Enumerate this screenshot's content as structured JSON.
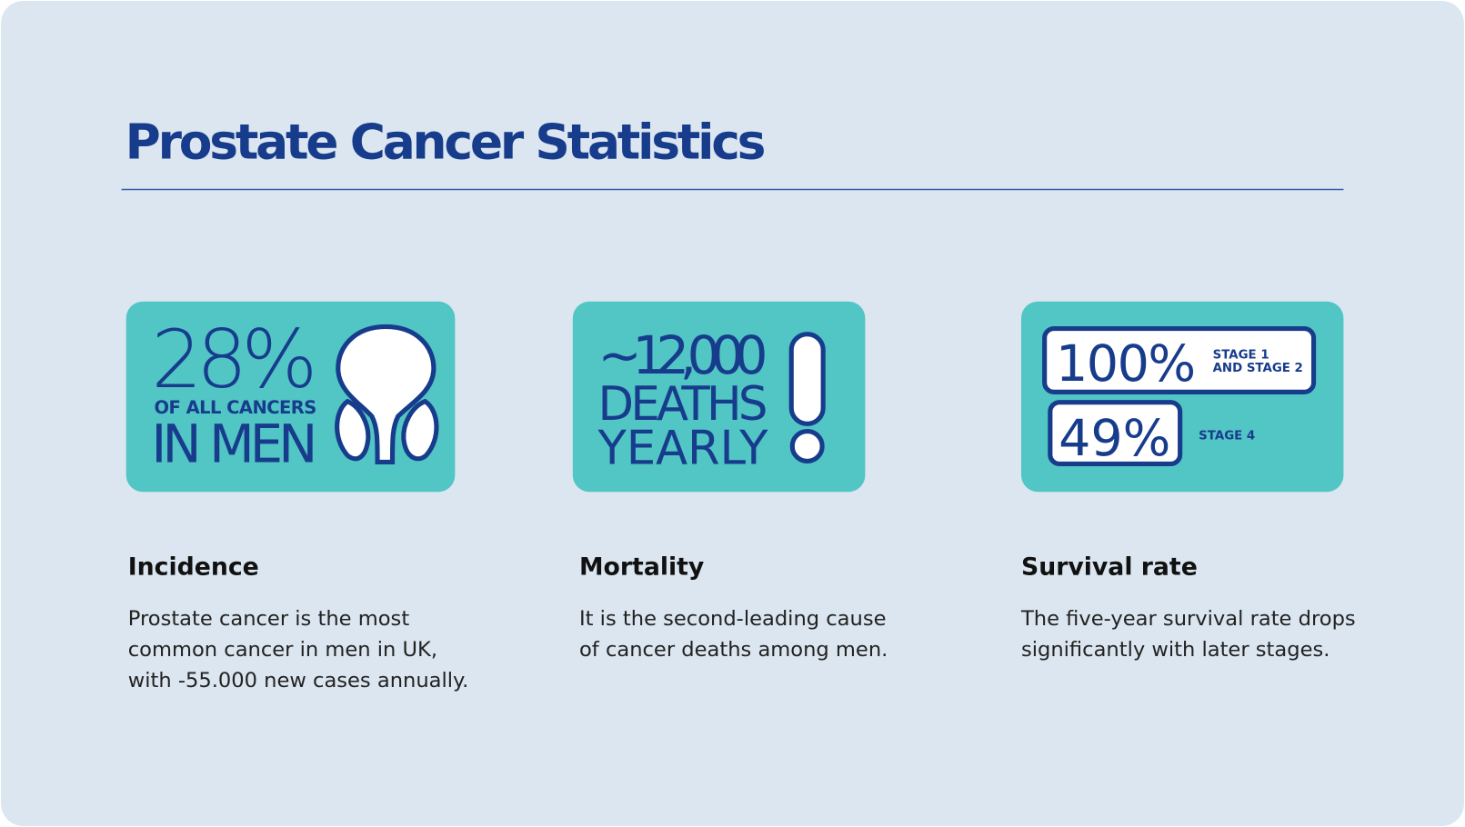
{
  "header": {
    "title": "Prostate Cancer Statistics"
  },
  "cards": [
    {
      "graphic": {
        "big": "28%",
        "small": "OF ALL CANCERS",
        "bottom": "IN MEN"
      },
      "heading": "Incidence",
      "body": [
        "Prostate cancer is the most",
        "common cancer in men in UK,",
        "with -55.000 new cases annually."
      ]
    },
    {
      "graphic": {
        "big": "~12,000",
        "line2": "DEATHS",
        "line3": "YEARLY"
      },
      "heading": "Mortality",
      "body": [
        "It is the second-leading cause",
        "of cancer deaths among men."
      ]
    },
    {
      "graphic": {
        "stat1": "100%",
        "label1": [
          "STAGE 1",
          "AND STAGE 2"
        ],
        "stat2": "49%",
        "label2": "STAGE 4"
      },
      "heading": "Survival rate",
      "body": [
        "The five-year survival rate drops",
        "significantly with later stages."
      ]
    }
  ]
}
